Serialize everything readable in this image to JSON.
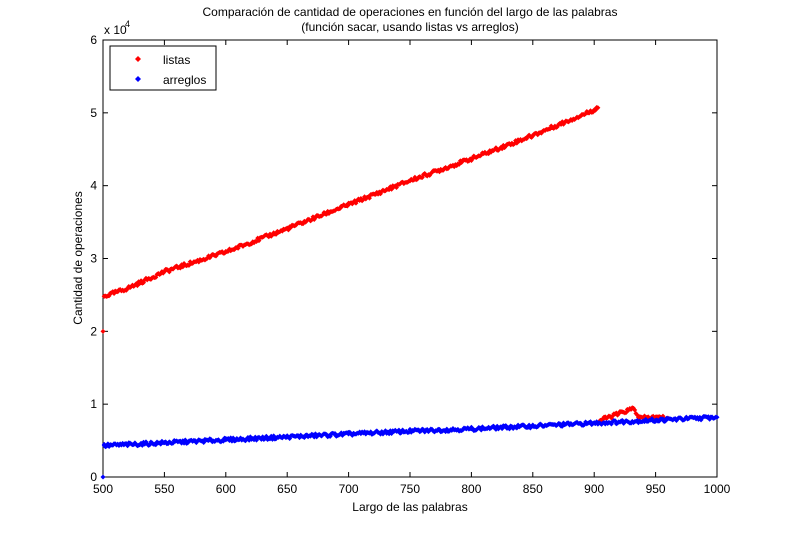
{
  "chart_data": {
    "type": "scatter",
    "title": [
      "Comparación de cantidad de operaciones en función del largo de las palabras",
      "(función sacar, usando listas vs arreglos)"
    ],
    "xlabel": "Largo de las palabras",
    "ylabel": "Cantidad de operaciones",
    "xlim": [
      500,
      1000
    ],
    "ylim": [
      0,
      60000
    ],
    "x_ticks": [
      500,
      550,
      600,
      650,
      700,
      750,
      800,
      850,
      900,
      950,
      1000
    ],
    "y_ticks": [
      0,
      1,
      2,
      3,
      4,
      5,
      6
    ],
    "y_multiplier": "x 10",
    "y_multiplier_exp": "4",
    "grid": false,
    "legend_position": "top-left",
    "series": [
      {
        "name": "listas",
        "color": "#ff0000",
        "marker": "diamond",
        "points": [
          [
            500,
            20000
          ],
          [
            501,
            24800
          ],
          [
            520,
            25900
          ],
          [
            550,
            28200
          ],
          [
            600,
            30900
          ],
          [
            650,
            34100
          ],
          [
            700,
            37400
          ],
          [
            750,
            40700
          ],
          [
            800,
            43700
          ],
          [
            850,
            46900
          ],
          [
            900,
            50400
          ],
          [
            903,
            50700
          ],
          [
            905,
            7800
          ],
          [
            920,
            8700
          ],
          [
            932,
            9400
          ],
          [
            937,
            8100
          ],
          [
            950,
            8200
          ],
          [
            960,
            8100
          ]
        ]
      },
      {
        "name": "arreglos",
        "color": "#0000ff",
        "marker": "diamond",
        "points": [
          [
            500,
            0
          ],
          [
            501,
            4300
          ],
          [
            550,
            4700
          ],
          [
            600,
            5100
          ],
          [
            650,
            5500
          ],
          [
            700,
            5900
          ],
          [
            750,
            6300
          ],
          [
            800,
            6600
          ],
          [
            850,
            7000
          ],
          [
            900,
            7400
          ],
          [
            950,
            7800
          ],
          [
            1000,
            8200
          ]
        ]
      }
    ]
  }
}
